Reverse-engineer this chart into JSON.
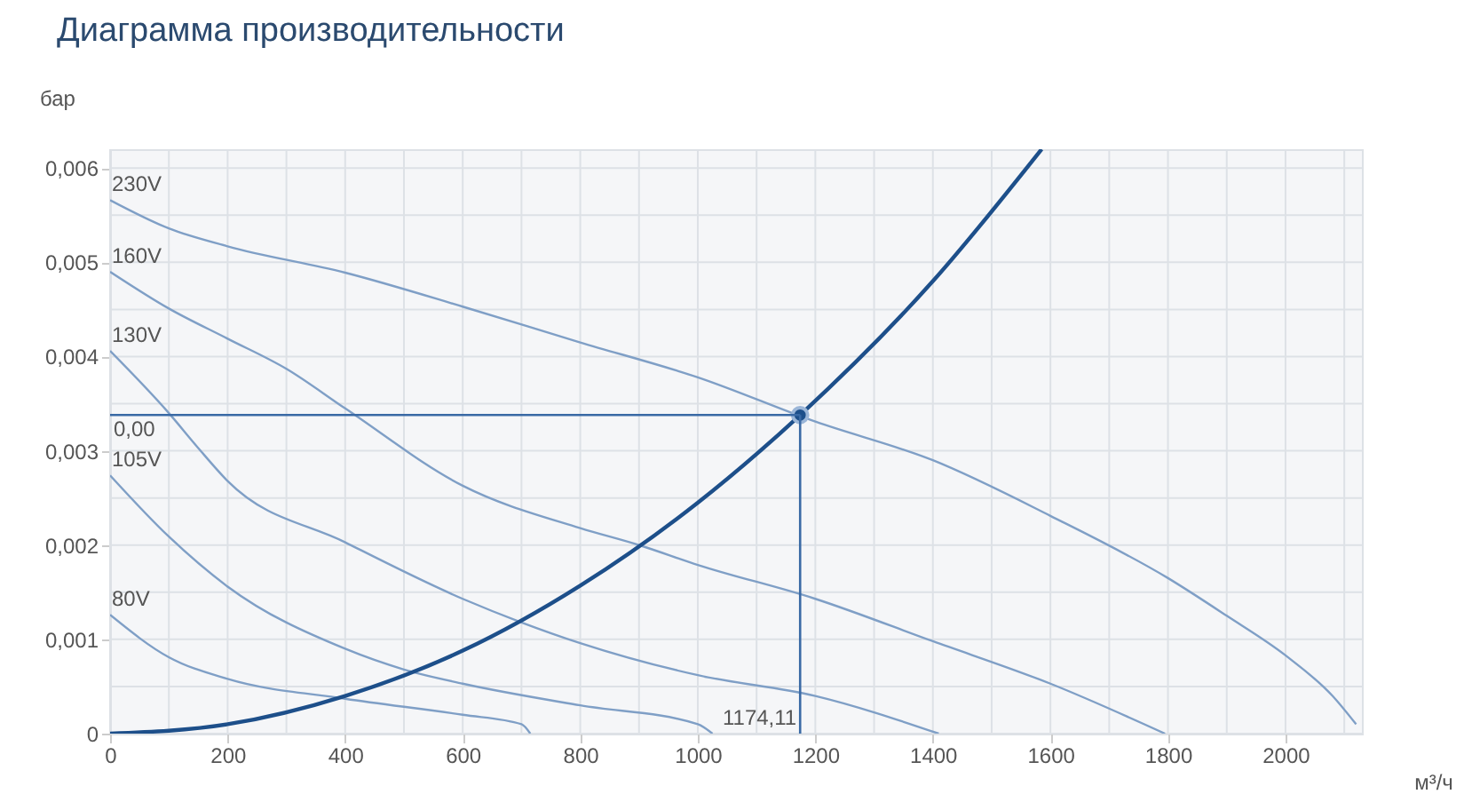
{
  "chart_data": {
    "type": "line",
    "title": "Диаграмма производительности",
    "xlabel": "м³/ч",
    "ylabel": "бар",
    "xlim": [
      0,
      2130
    ],
    "ylim": [
      0,
      0.0062
    ],
    "xticks": [
      0,
      {
        "value": 100,
        "label": null
      },
      200,
      {
        "value": 300,
        "label": null
      },
      400,
      {
        "value": 500,
        "label": null
      },
      600,
      {
        "value": 700,
        "label": null
      },
      800,
      {
        "value": 900,
        "label": null
      },
      1000,
      {
        "value": 1100,
        "label": null
      },
      1200,
      {
        "value": 1300,
        "label": null
      },
      1400,
      {
        "value": 1500,
        "label": null
      },
      1600,
      {
        "value": 1700,
        "label": null
      },
      1800,
      {
        "value": 1900,
        "label": null
      },
      2000,
      {
        "value": 2100,
        "label": null
      }
    ],
    "yticks": [
      0,
      {
        "value": 0.0005,
        "label": null
      },
      {
        "value": 0.001,
        "label": "0,001"
      },
      {
        "value": 0.0015,
        "label": null
      },
      {
        "value": 0.002,
        "label": "0,002"
      },
      {
        "value": 0.0025,
        "label": null
      },
      {
        "value": 0.003,
        "label": "0,003"
      },
      {
        "value": 0.0035,
        "label": null
      },
      {
        "value": 0.004,
        "label": "0,004"
      },
      {
        "value": 0.0045,
        "label": null
      },
      {
        "value": 0.005,
        "label": "0,005"
      },
      {
        "value": 0.0055,
        "label": null
      },
      {
        "value": 0.006,
        "label": "0,006"
      }
    ],
    "grid": true,
    "line_style": "solid",
    "series": [
      {
        "name": "230V",
        "color": "#7f9fc6",
        "x": [
          0,
          100,
          200,
          400,
          600,
          800,
          1000,
          1200,
          1400,
          1600,
          1800,
          1900,
          2000,
          2080,
          2120
        ],
        "values": [
          0.00566,
          0.00536,
          0.00517,
          0.00489,
          0.00453,
          0.00415,
          0.00378,
          0.00331,
          0.0029,
          0.00231,
          0.00165,
          0.00125,
          0.00083,
          0.0004,
          0.0001
        ]
      },
      {
        "name": "160V",
        "color": "#7f9fc6",
        "x": [
          0,
          100,
          200,
          300,
          400,
          600,
          800,
          900,
          1000,
          1200,
          1400,
          1600,
          1795
        ],
        "values": [
          0.0049,
          0.00451,
          0.00419,
          0.00387,
          0.00345,
          0.00263,
          0.00218,
          0.002,
          0.00179,
          0.00143,
          0.00098,
          0.00053,
          0
        ]
      },
      {
        "name": "130V",
        "color": "#7f9fc6",
        "x": [
          0,
          100,
          150,
          200,
          400,
          600,
          700,
          800,
          1000,
          1200,
          1410
        ],
        "values": [
          0.00406,
          0.0034,
          0.00303,
          0.00268,
          0.00203,
          0.00143,
          0.00118,
          0.00096,
          0.00062,
          0.0004,
          0
        ]
      },
      {
        "name": "105V",
        "color": "#7f9fc6",
        "x": [
          0,
          100,
          200,
          400,
          500,
          600,
          800,
          1000,
          1025
        ],
        "values": [
          0.00274,
          0.00209,
          0.00156,
          0.0009,
          0.00068,
          0.00053,
          0.0003,
          0.0001,
          0
        ]
      },
      {
        "name": "80V",
        "color": "#7f9fc6",
        "x": [
          0,
          100,
          200,
          400,
          600,
          700,
          715
        ],
        "values": [
          0.00126,
          0.00081,
          0.00058,
          0.00037,
          0.0002,
          0.0001,
          0
        ]
      },
      {
        "color": "#1d4f8a",
        "x": [
          0,
          200,
          400,
          600,
          800,
          1000,
          1174.11,
          1400,
          1585
        ],
        "values": [
          0,
          0.0001,
          0.0004,
          0.00088,
          0.00157,
          0.00245,
          0.00338,
          0.0048,
          0.0062
        ]
      },
      {
        "type": "scatter",
        "marker": "circle",
        "color": "#1d4f8a",
        "x": [
          1174.11
        ],
        "values": [
          0.00338
        ]
      }
    ],
    "ref_lines": [
      {
        "axis": "y",
        "value": 0.00338,
        "label": "0,00",
        "color": "#3a6aa5"
      },
      {
        "axis": "x",
        "value": 1174.11,
        "label": "1174,11",
        "color": "#3a6aa5"
      }
    ]
  }
}
